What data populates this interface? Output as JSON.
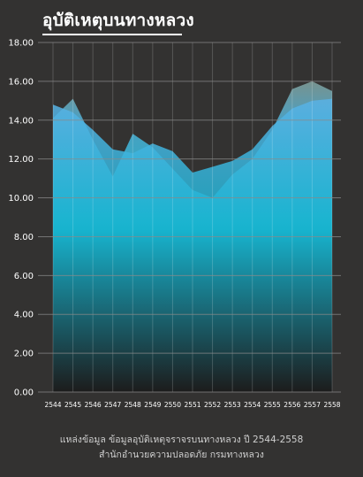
{
  "title": "อุบัติเหตุบนทางหลวง",
  "source": {
    "line1": "แหล่งข้อมูล ข้อมูลอุบัติเหตุจราจรบนทางหลวง ปี 2544-2558",
    "line2": "สำนักอำนวยความปลอดภัย กรมทางหลวง"
  },
  "colors": {
    "background": "#333231",
    "series_a_top": "#4aa6e0",
    "series_b_top": "#6e8f8c",
    "gradient_mid": "#15b3cc",
    "gradient_bottom": "#1c1c1c",
    "grid": "#6a6a6a"
  },
  "chart_data": {
    "type": "area",
    "categories": [
      "2544",
      "2545",
      "2546",
      "2547",
      "2548",
      "2549",
      "2550",
      "2551",
      "2552",
      "2553",
      "2554",
      "2555",
      "2556",
      "2557",
      "2558"
    ],
    "y_tick_labels": [
      "0.00",
      "2.00",
      "4.00",
      "6.00",
      "8.00",
      "10.00",
      "12.00",
      "14.00",
      "16.00",
      "18.00"
    ],
    "ylim": [
      0,
      18
    ],
    "grid": true,
    "series": [
      {
        "values": [
          14.8,
          14.4,
          13.5,
          12.5,
          12.3,
          12.8,
          12.4,
          11.3,
          11.6,
          11.9,
          12.5,
          13.7,
          14.6,
          15.0,
          15.1
        ]
      },
      {
        "values": [
          14.1,
          15.1,
          13.0,
          11.1,
          13.3,
          12.6,
          11.5,
          10.4,
          10.0,
          11.2,
          12.0,
          13.5,
          15.6,
          16.0,
          15.5
        ]
      }
    ]
  }
}
